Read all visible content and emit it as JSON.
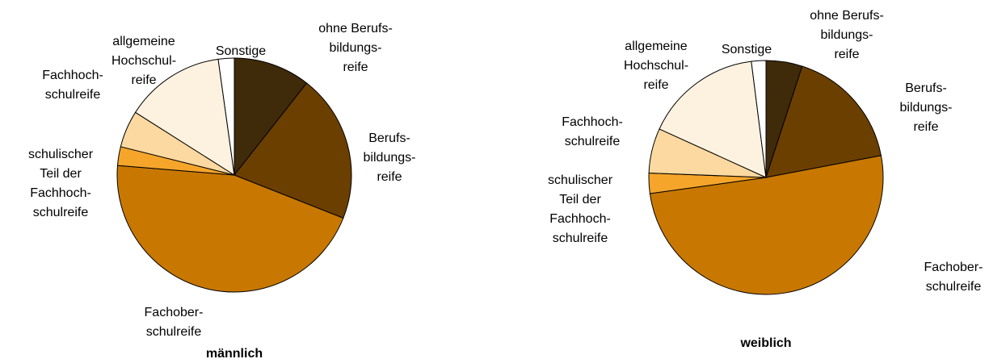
{
  "chart_data": [
    {
      "type": "pie",
      "title": "männlich",
      "categories": [
        "ohne Berufs-\nbildungs-\nreife",
        "Berufs-\nbildungs-\nreife",
        "Fachober-\nschulreife",
        "schulischer\nTeil der\nFachhoch-\nschulreife",
        "Fachhoch-\nschulreife",
        "allgemeine\nHochschul-\nreife",
        "Sonstige"
      ],
      "values": [
        10.6,
        20.4,
        45.3,
        2.6,
        5.1,
        13.8,
        2.2
      ],
      "colors": [
        "#3f2a0a",
        "#6b3f00",
        "#c87800",
        "#f5a52a",
        "#fcd9a0",
        "#fdf2e0",
        "#ffffff"
      ]
    },
    {
      "type": "pie",
      "title": "weiblich",
      "categories": [
        "ohne Berufs-\nbildungs-\nreife",
        "Berufs-\nbildungs-\nreife",
        "Fachober-\nschulreife",
        "schulischer\nTeil der\nFachhoch-\nschulreife",
        "Fachhoch-\nschulreife",
        "allgemeine\nHochschul-\nreife",
        "Sonstige"
      ],
      "values": [
        5,
        17,
        50.8,
        2.8,
        6.2,
        16.2,
        2
      ],
      "colors": [
        "#3f2a0a",
        "#6b3f00",
        "#c87800",
        "#f5a52a",
        "#fcd9a0",
        "#fdf2e0",
        "#ffffff"
      ]
    }
  ]
}
